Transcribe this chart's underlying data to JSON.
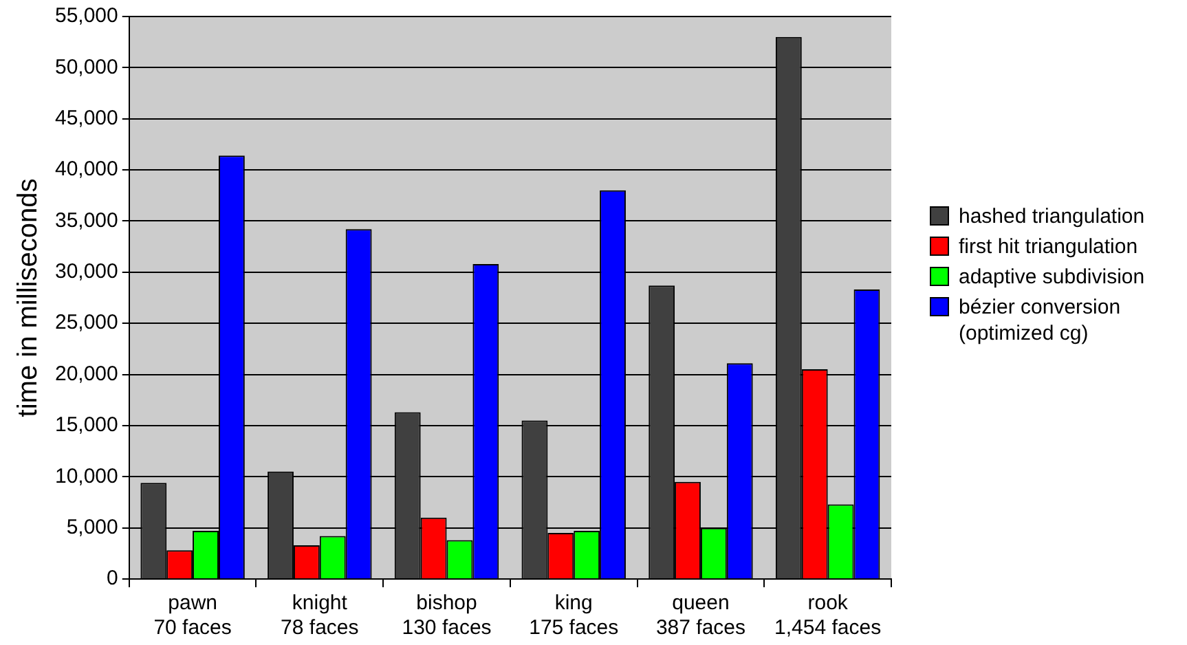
{
  "chart_data": {
    "type": "bar",
    "ylabel": "time in milliseconds",
    "categories": [
      "pawn\n70 faces",
      "knight\n78 faces",
      "bishop\n130 faces",
      "king\n175 faces",
      "queen\n387 faces",
      "rook\n1,454 faces"
    ],
    "series": [
      {
        "name": "hashed triangulation",
        "color": "#404040",
        "values": [
          9400,
          10500,
          16300,
          15500,
          28700,
          53000
        ]
      },
      {
        "name": "first hit triangulation",
        "color": "#ff0000",
        "values": [
          2800,
          3300,
          6000,
          4500,
          9500,
          20500
        ]
      },
      {
        "name": "adaptive subdivision",
        "color": "#00ff00",
        "values": [
          4700,
          4200,
          3800,
          4700,
          5000,
          7300
        ]
      },
      {
        "name": "bézier conversion (optimized cg)",
        "color": "#0000ff",
        "values": [
          41400,
          34200,
          30800,
          38000,
          21100,
          28300
        ]
      }
    ],
    "ylim": [
      0,
      55000
    ],
    "yticks": [
      {
        "value": 0,
        "label": "0"
      },
      {
        "value": 5000,
        "label": "5,000"
      },
      {
        "value": 10000,
        "label": "10,000"
      },
      {
        "value": 15000,
        "label": "15,000"
      },
      {
        "value": 20000,
        "label": "20,000"
      },
      {
        "value": 25000,
        "label": "25,000"
      },
      {
        "value": 30000,
        "label": "30,000"
      },
      {
        "value": 35000,
        "label": "35,000"
      },
      {
        "value": 40000,
        "label": "40,000"
      },
      {
        "value": 45000,
        "label": "45,000"
      },
      {
        "value": 50000,
        "label": "50,000"
      },
      {
        "value": 55000,
        "label": "55,000"
      }
    ],
    "grid": "y",
    "legend": "right"
  }
}
